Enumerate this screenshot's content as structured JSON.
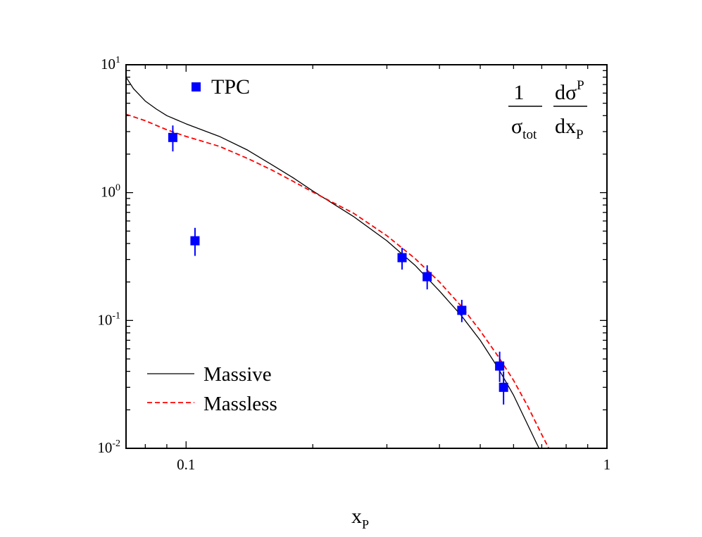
{
  "chart_data": {
    "type": "scatter",
    "xscale": "log",
    "yscale": "log",
    "xlim": [
      0.072,
      1.0
    ],
    "ylim": [
      0.01,
      10
    ],
    "x_ticks": [
      {
        "value": 0.1,
        "label": "0.1"
      },
      {
        "value": 1,
        "label": "1"
      }
    ],
    "y_ticks": [
      {
        "value": 10,
        "base": "10",
        "exp": "1"
      },
      {
        "value": 1,
        "base": "10",
        "exp": "0"
      },
      {
        "value": 0.1,
        "base": "10",
        "exp": "-1"
      },
      {
        "value": 0.01,
        "base": "10",
        "exp": "-2"
      }
    ],
    "xlabel": {
      "main": "x",
      "sub": "P"
    },
    "formula": {
      "numerator_left": "1",
      "denominator_left_main": "σ",
      "denominator_left_sub": "tot",
      "numerator_right_main": "dσ",
      "numerator_right_sup": "P",
      "denominator_right_main": "dx",
      "denominator_right_sub": "P"
    },
    "legend": {
      "placement": "bottom-left"
    },
    "series": [
      {
        "name": "TPC",
        "kind": "points",
        "color": "#0000ff",
        "marker": "square",
        "points": [
          {
            "x": 0.093,
            "y": 2.7,
            "ylo": 2.1,
            "yhi": 3.35
          },
          {
            "x": 0.105,
            "y": 0.42,
            "ylo": 0.32,
            "yhi": 0.53
          },
          {
            "x": 0.326,
            "y": 0.31,
            "ylo": 0.25,
            "yhi": 0.37
          },
          {
            "x": 0.374,
            "y": 0.22,
            "ylo": 0.175,
            "yhi": 0.27
          },
          {
            "x": 0.452,
            "y": 0.12,
            "ylo": 0.097,
            "yhi": 0.145
          },
          {
            "x": 0.556,
            "y": 0.044,
            "ylo": 0.033,
            "yhi": 0.057
          },
          {
            "x": 0.568,
            "y": 0.03,
            "ylo": 0.022,
            "yhi": 0.04
          }
        ]
      },
      {
        "name": "Massive",
        "kind": "line",
        "color": "#000000",
        "dash": "solid",
        "points": [
          [
            0.072,
            8.0
          ],
          [
            0.075,
            6.5
          ],
          [
            0.08,
            5.2
          ],
          [
            0.085,
            4.5
          ],
          [
            0.09,
            4.0
          ],
          [
            0.1,
            3.45
          ],
          [
            0.12,
            2.75
          ],
          [
            0.14,
            2.15
          ],
          [
            0.16,
            1.65
          ],
          [
            0.18,
            1.3
          ],
          [
            0.2,
            1.03
          ],
          [
            0.25,
            0.65
          ],
          [
            0.3,
            0.42
          ],
          [
            0.35,
            0.27
          ],
          [
            0.4,
            0.17
          ],
          [
            0.45,
            0.11
          ],
          [
            0.5,
            0.07
          ],
          [
            0.55,
            0.043
          ],
          [
            0.6,
            0.026
          ],
          [
            0.65,
            0.015
          ],
          [
            0.68,
            0.011
          ],
          [
            0.69,
            0.01
          ]
        ]
      },
      {
        "name": "Massless",
        "kind": "line",
        "color": "#ff0000",
        "dash": "dashed",
        "points": [
          [
            0.072,
            4.1
          ],
          [
            0.08,
            3.65
          ],
          [
            0.09,
            3.1
          ],
          [
            0.1,
            2.75
          ],
          [
            0.12,
            2.3
          ],
          [
            0.14,
            1.85
          ],
          [
            0.16,
            1.5
          ],
          [
            0.18,
            1.22
          ],
          [
            0.2,
            1.01
          ],
          [
            0.25,
            0.69
          ],
          [
            0.3,
            0.46
          ],
          [
            0.35,
            0.305
          ],
          [
            0.4,
            0.2
          ],
          [
            0.45,
            0.13
          ],
          [
            0.5,
            0.083
          ],
          [
            0.55,
            0.053
          ],
          [
            0.6,
            0.034
          ],
          [
            0.65,
            0.021
          ],
          [
            0.7,
            0.0128
          ],
          [
            0.73,
            0.0098
          ]
        ]
      }
    ]
  }
}
